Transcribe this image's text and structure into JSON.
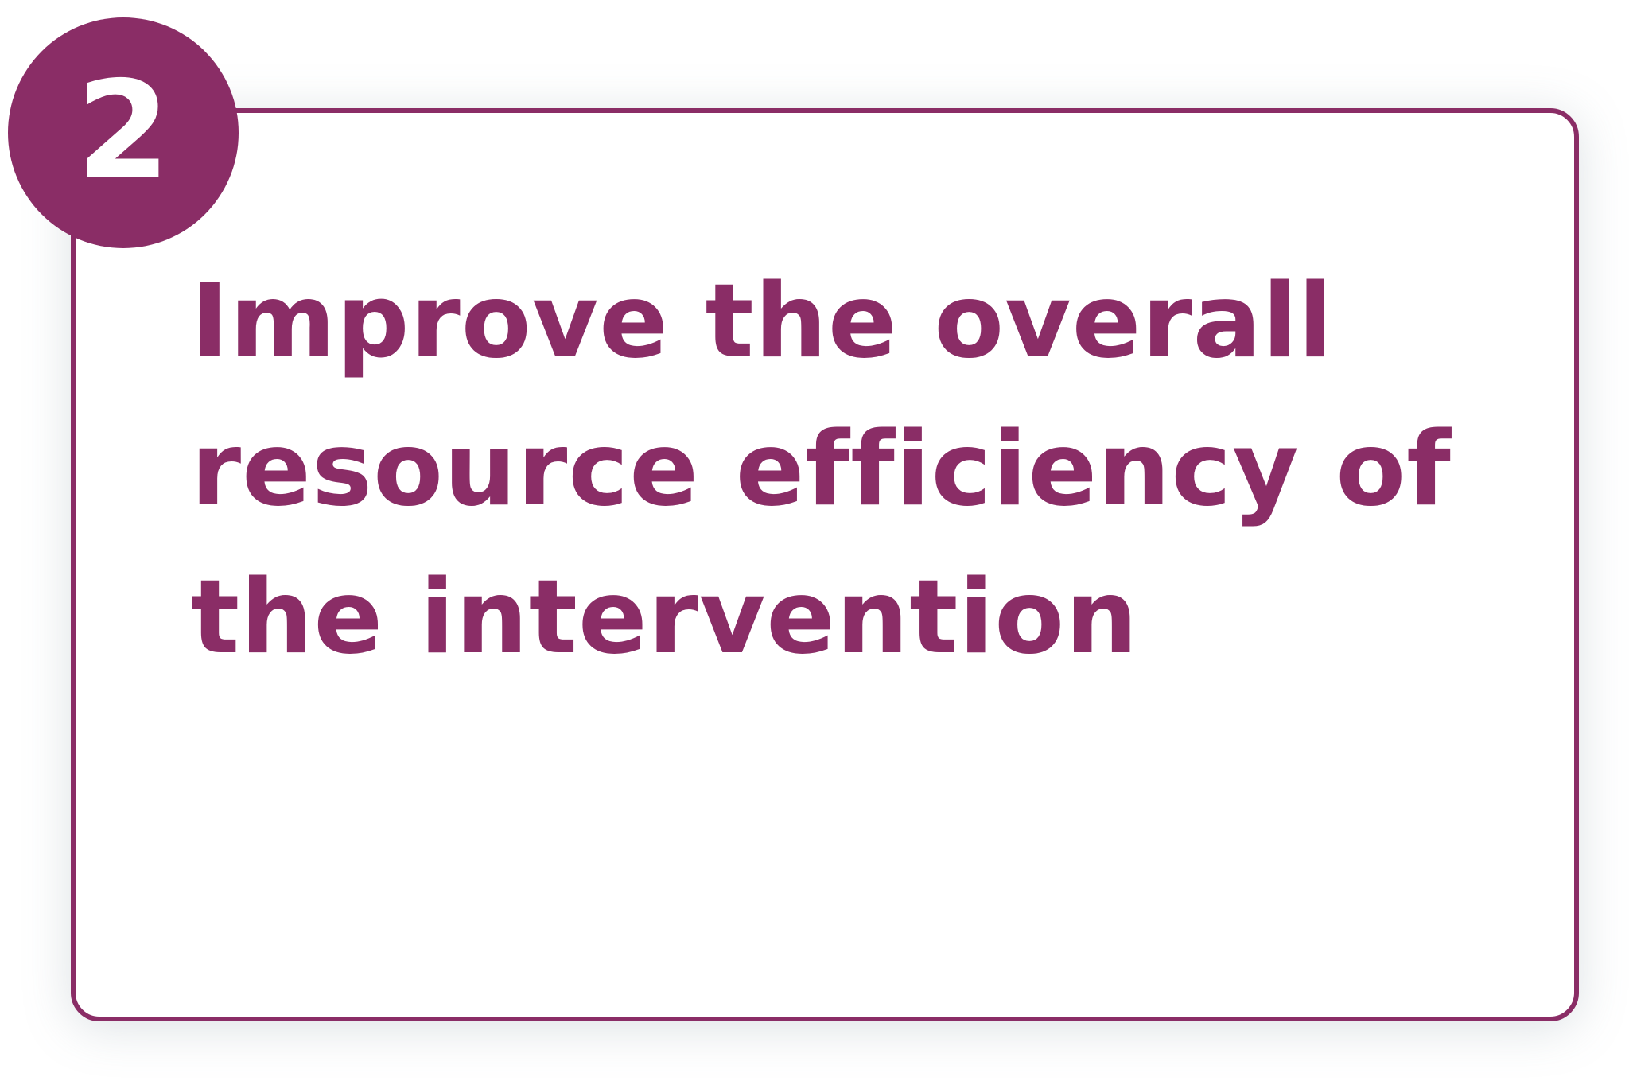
{
  "badge": {
    "number": "2"
  },
  "card": {
    "text": "Improve the overall resource efficiency of the intervention"
  },
  "colors": {
    "accent": "#8a2d66",
    "background": "#ffffff"
  }
}
